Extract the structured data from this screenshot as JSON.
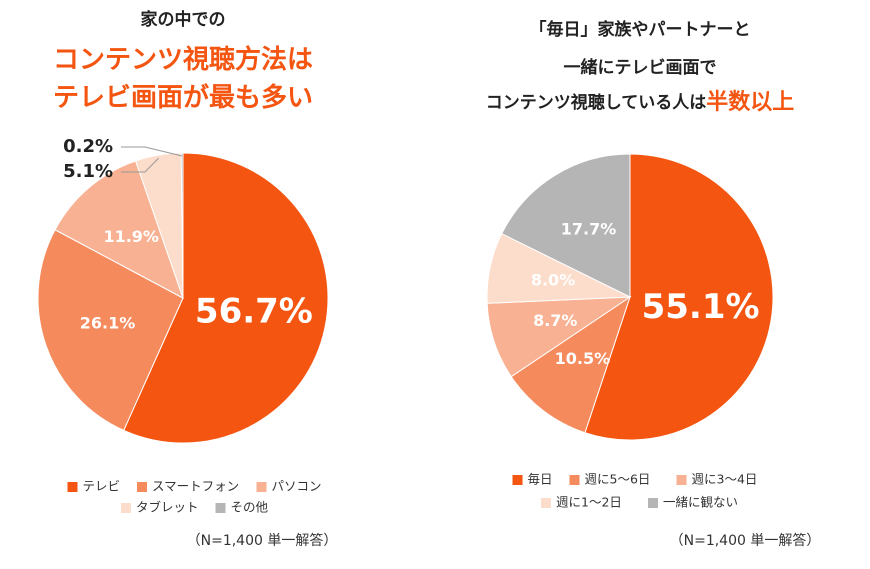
{
  "chart_data": [
    {
      "type": "pie",
      "title": [
        [
          {
            "text": "家の中での",
            "emphasis": false
          }
        ],
        [
          {
            "text": "コンテンツ視聴方法は",
            "emphasis": true
          }
        ],
        [
          {
            "text": "テレビ画面が最も多い",
            "emphasis": true
          }
        ]
      ],
      "categories": [
        "テレビ",
        "スマートフォン",
        "パソコン",
        "タブレット",
        "その他"
      ],
      "values": [
        56.7,
        26.1,
        11.9,
        5.1,
        0.2
      ],
      "value_labels": [
        "56.7%",
        "26.1%",
        "11.9%",
        "5.1%",
        "0.2%"
      ],
      "colors": [
        "#f45511",
        "#f58b5d",
        "#f8b293",
        "#fcdcca",
        "#b5b5b5"
      ],
      "note": "（N=1,400  単一解答）"
    },
    {
      "type": "pie",
      "title": [
        [
          {
            "text": "「毎日」家族やパートナーと",
            "emphasis": false
          }
        ],
        [
          {
            "text": "一緒にテレビ画面で",
            "emphasis": false
          }
        ],
        [
          {
            "text": "コンテンツ視聴している人は",
            "emphasis": false
          },
          {
            "text": "半数以上",
            "emphasis": true
          }
        ]
      ],
      "categories": [
        "毎日",
        "週に5～6日",
        "週に3～4日",
        "週に1～2日",
        "一緒に観ない"
      ],
      "values": [
        55.1,
        10.5,
        8.7,
        8.0,
        17.7
      ],
      "value_labels": [
        "55.1%",
        "10.5%",
        "8.7%",
        "8.0%",
        "17.7%"
      ],
      "colors": [
        "#f45511",
        "#f58b5d",
        "#f8b293",
        "#fcdcca",
        "#b5b5b5"
      ],
      "note": "（N=1,400  単一解答）"
    }
  ]
}
